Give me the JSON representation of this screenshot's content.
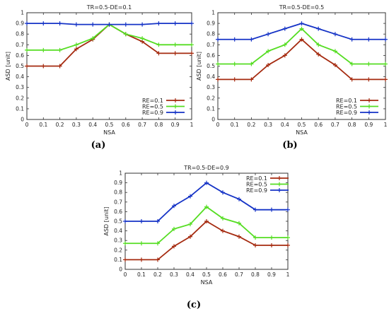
{
  "chart_data": [
    {
      "type": "line",
      "panel_label": "(a)",
      "title": "TR=0.5-DE=0.1",
      "xlabel": "NSA",
      "ylabel": "ASD [unit]",
      "xlim": [
        0,
        1
      ],
      "ylim": [
        0,
        1
      ],
      "xticks": [
        "0",
        "0.1",
        "0.2",
        "0.3",
        "0.4",
        "0.5",
        "0.6",
        "0.7",
        "0.8",
        "0.9",
        "1"
      ],
      "yticks": [
        "0",
        "0.1",
        "0.2",
        "0.3",
        "0.4",
        "0.5",
        "0.6",
        "0.7",
        "0.8",
        "0.9",
        "1"
      ],
      "legend_position": "bottom-right",
      "x": [
        0,
        0.1,
        0.2,
        0.3,
        0.4,
        0.5,
        0.6,
        0.7,
        0.8,
        0.9,
        1
      ],
      "series": [
        {
          "name": "RE=0.1",
          "color": "#a52a0f",
          "values": [
            0.5,
            0.5,
            0.5,
            0.66,
            0.75,
            0.89,
            0.8,
            0.73,
            0.62,
            0.62,
            0.62
          ]
        },
        {
          "name": "RE=0.5",
          "color": "#55dd22",
          "values": [
            0.65,
            0.65,
            0.65,
            0.7,
            0.76,
            0.89,
            0.8,
            0.76,
            0.7,
            0.7,
            0.7
          ]
        },
        {
          "name": "RE=0.9",
          "color": "#1533c6",
          "values": [
            0.9,
            0.9,
            0.9,
            0.89,
            0.89,
            0.89,
            0.89,
            0.89,
            0.9,
            0.9,
            0.9
          ]
        }
      ]
    },
    {
      "type": "line",
      "panel_label": "(b)",
      "title": "TR=0.5-DE=0.5",
      "xlabel": "NSA",
      "ylabel": "ASD [unit]",
      "xlim": [
        0,
        1
      ],
      "ylim": [
        0,
        1
      ],
      "xticks": [
        "0",
        "0.1",
        "0.2",
        "0.3",
        "0.4",
        "0.5",
        "0.6",
        "0.7",
        "0.8",
        "0.9",
        "1"
      ],
      "yticks": [
        "0",
        "0.1",
        "0.2",
        "0.3",
        "0.4",
        "0.5",
        "0.6",
        "0.7",
        "0.8",
        "0.9",
        "1"
      ],
      "legend_position": "bottom-right",
      "x": [
        0,
        0.1,
        0.2,
        0.3,
        0.4,
        0.5,
        0.6,
        0.7,
        0.8,
        0.9,
        1
      ],
      "series": [
        {
          "name": "RE=0.1",
          "color": "#a52a0f",
          "values": [
            0.375,
            0.375,
            0.375,
            0.51,
            0.6,
            0.75,
            0.61,
            0.51,
            0.375,
            0.375,
            0.375
          ]
        },
        {
          "name": "RE=0.5",
          "color": "#55dd22",
          "values": [
            0.52,
            0.52,
            0.52,
            0.64,
            0.7,
            0.85,
            0.7,
            0.64,
            0.52,
            0.52,
            0.52
          ]
        },
        {
          "name": "RE=0.9",
          "color": "#1533c6",
          "values": [
            0.75,
            0.75,
            0.75,
            0.8,
            0.85,
            0.9,
            0.85,
            0.8,
            0.75,
            0.75,
            0.75
          ]
        }
      ]
    },
    {
      "type": "line",
      "panel_label": "(c)",
      "title": "TR=0.5-DE=0.9",
      "xlabel": "NSA",
      "ylabel": "ASD [unit]",
      "xlim": [
        0,
        1
      ],
      "ylim": [
        0,
        1
      ],
      "xticks": [
        "0",
        "0.1",
        "0.2",
        "0.3",
        "0.4",
        "0.5",
        "0.6",
        "0.7",
        "0.8",
        "0.9",
        "1"
      ],
      "yticks": [
        "0",
        "0.1",
        "0.2",
        "0.3",
        "0.4",
        "0.5",
        "0.6",
        "0.7",
        "0.8",
        "0.9",
        "1"
      ],
      "legend_position": "top-right",
      "x": [
        0,
        0.1,
        0.2,
        0.3,
        0.4,
        0.5,
        0.6,
        0.7,
        0.8,
        0.9,
        1
      ],
      "series": [
        {
          "name": "RE=0.1",
          "color": "#a52a0f",
          "values": [
            0.1,
            0.1,
            0.1,
            0.24,
            0.34,
            0.5,
            0.4,
            0.34,
            0.25,
            0.25,
            0.25
          ]
        },
        {
          "name": "RE=0.5",
          "color": "#55dd22",
          "values": [
            0.27,
            0.27,
            0.27,
            0.42,
            0.47,
            0.65,
            0.53,
            0.48,
            0.33,
            0.33,
            0.33
          ]
        },
        {
          "name": "RE=0.9",
          "color": "#1533c6",
          "values": [
            0.5,
            0.5,
            0.5,
            0.66,
            0.76,
            0.9,
            0.8,
            0.73,
            0.62,
            0.62,
            0.62
          ]
        }
      ]
    }
  ]
}
